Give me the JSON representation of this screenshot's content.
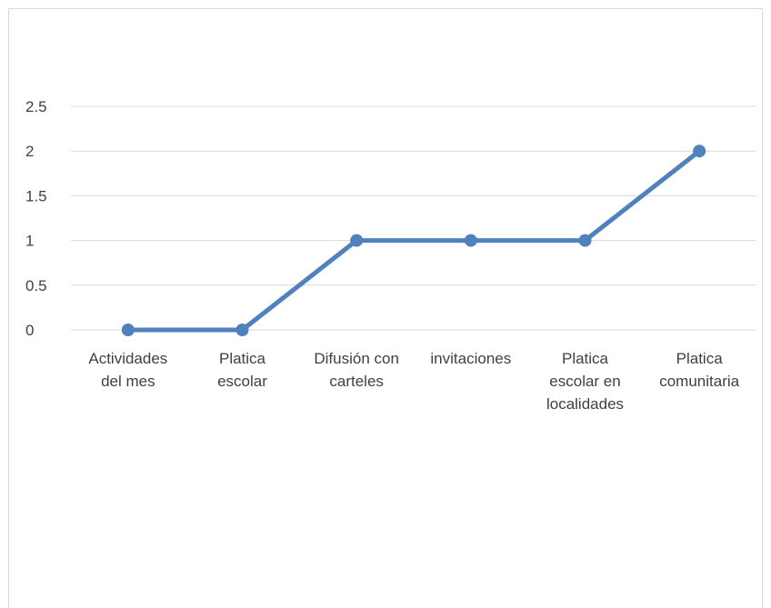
{
  "chart_data": {
    "type": "line",
    "categories": [
      [
        "Actividades",
        "del mes"
      ],
      [
        "Platica",
        "escolar"
      ],
      [
        "Difusión con",
        "carteles"
      ],
      [
        "invitaciones"
      ],
      [
        "Platica",
        "escolar en",
        "localidades"
      ],
      [
        "Platica",
        "comunitaria"
      ]
    ],
    "series": [
      {
        "values": [
          0,
          0,
          1,
          1,
          1,
          2
        ],
        "color": "#4f81bd"
      }
    ],
    "y_ticks": [
      "0",
      "0.5",
      "1",
      "1.5",
      "2",
      "2.5"
    ],
    "ylim": [
      0,
      2.5
    ],
    "grid": true,
    "gridline_color": "#d9d9d9"
  }
}
